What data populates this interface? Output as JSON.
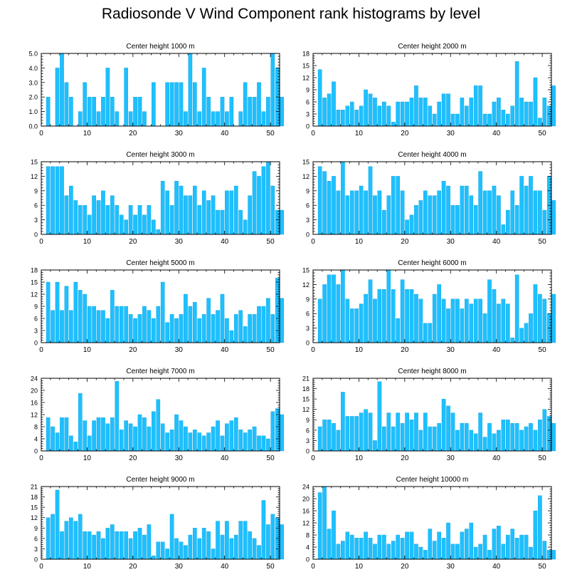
{
  "title": "Radiosonde V Wind Component rank histograms by level",
  "colors": {
    "bar": "#1ec0ff",
    "bar_stroke": "#0aa0dd",
    "frame": "#000000"
  },
  "chart_data": [
    {
      "type": "bar",
      "title": "Center height 1000 m",
      "xlim": [
        0,
        52
      ],
      "ylim": [
        0,
        5
      ],
      "xticks": [
        0,
        10,
        20,
        30,
        40,
        50
      ],
      "yticks": [
        0,
        1,
        2,
        3,
        4,
        5
      ],
      "ytick_labels": [
        "0.0",
        "1.0",
        "2.0",
        "3.0",
        "4.0",
        "5.0"
      ],
      "values": [
        0,
        2,
        0,
        4,
        5,
        3,
        2,
        0,
        1,
        3,
        2,
        2,
        1,
        2,
        4,
        2,
        1,
        0,
        4,
        1,
        2,
        2,
        1,
        0,
        3,
        0,
        0,
        3,
        3,
        3,
        3,
        1,
        5,
        3,
        1,
        4,
        2,
        1,
        1,
        2,
        1,
        2,
        0,
        1,
        3,
        2,
        2,
        3,
        1,
        2,
        5,
        4,
        2
      ]
    },
    {
      "type": "bar",
      "title": "Center height 2000 m",
      "xlim": [
        0,
        52
      ],
      "ylim": [
        0,
        18
      ],
      "xticks": [
        0,
        10,
        20,
        30,
        40,
        50
      ],
      "yticks": [
        0,
        3,
        6,
        9,
        12,
        15,
        18
      ],
      "ytick_labels": [
        "0",
        "3",
        "6",
        "9",
        "12",
        "15",
        "18"
      ],
      "values": [
        0,
        14,
        7,
        8,
        11,
        4,
        4,
        5,
        6,
        4,
        5,
        9,
        8,
        7,
        5,
        6,
        5,
        1,
        6,
        6,
        6,
        7,
        10,
        7,
        7,
        5,
        3,
        6,
        8,
        8,
        3,
        3,
        7,
        5,
        7,
        10,
        10,
        3,
        3,
        6,
        7,
        4,
        3,
        5,
        16,
        7,
        6,
        6,
        12,
        2,
        7,
        5,
        10
      ]
    },
    {
      "type": "bar",
      "title": "Center height 3000 m",
      "xlim": [
        0,
        52
      ],
      "ylim": [
        0,
        15
      ],
      "xticks": [
        0,
        10,
        20,
        30,
        40,
        50
      ],
      "yticks": [
        0,
        3,
        6,
        9,
        12,
        15
      ],
      "ytick_labels": [
        "0",
        "3",
        "6",
        "9",
        "12",
        "15"
      ],
      "values": [
        0,
        14,
        14,
        14,
        14,
        8,
        10,
        7,
        6,
        6,
        4,
        8,
        7,
        9,
        6,
        8,
        6,
        4,
        3,
        6,
        4,
        6,
        4,
        6,
        3,
        1,
        11,
        9,
        6,
        11,
        10,
        8,
        8,
        10,
        6,
        9,
        7,
        8,
        5,
        5,
        9,
        9,
        10,
        5,
        3,
        8,
        13,
        12,
        14,
        15,
        10,
        5,
        5
      ]
    },
    {
      "type": "bar",
      "title": "Center height 4000 m",
      "xlim": [
        0,
        52
      ],
      "ylim": [
        0,
        15
      ],
      "xticks": [
        0,
        10,
        20,
        30,
        40,
        50
      ],
      "yticks": [
        0,
        3,
        6,
        9,
        12,
        15
      ],
      "ytick_labels": [
        "0",
        "3",
        "6",
        "9",
        "12",
        "15"
      ],
      "values": [
        0,
        14,
        13,
        11,
        12,
        9,
        15,
        8,
        9,
        9,
        10,
        9,
        14,
        8,
        9,
        5,
        8,
        12,
        12,
        9,
        3,
        4,
        6,
        7,
        9,
        8,
        8,
        9,
        11,
        10,
        6,
        6,
        10,
        10,
        8,
        6,
        13,
        9,
        9,
        10,
        8,
        2,
        5,
        9,
        6,
        12,
        10,
        12,
        9,
        9,
        5,
        12,
        7
      ]
    },
    {
      "type": "bar",
      "title": "Center height 5000 m",
      "xlim": [
        0,
        52
      ],
      "ylim": [
        0,
        18
      ],
      "xticks": [
        0,
        10,
        20,
        30,
        40,
        50
      ],
      "yticks": [
        0,
        3,
        6,
        9,
        12,
        15,
        18
      ],
      "ytick_labels": [
        "0",
        "3",
        "6",
        "9",
        "12",
        "15",
        "18"
      ],
      "values": [
        0,
        15,
        8,
        15,
        8,
        14,
        8,
        15,
        13,
        12,
        9,
        9,
        8,
        8,
        6,
        13,
        9,
        9,
        9,
        7,
        6,
        7,
        9,
        8,
        6,
        9,
        15,
        5,
        7,
        6,
        7,
        12,
        9,
        10,
        6,
        7,
        11,
        7,
        8,
        12,
        6,
        3,
        7,
        8,
        4,
        7,
        7,
        9,
        9,
        11,
        7,
        16,
        11
      ]
    },
    {
      "type": "bar",
      "title": "Center height 6000 m",
      "xlim": [
        0,
        52
      ],
      "ylim": [
        0,
        15
      ],
      "xticks": [
        0,
        10,
        20,
        30,
        40,
        50
      ],
      "yticks": [
        0,
        3,
        6,
        9,
        12,
        15
      ],
      "ytick_labels": [
        "0",
        "3",
        "6",
        "9",
        "12",
        "15"
      ],
      "values": [
        0,
        9,
        12,
        14,
        14,
        12,
        15,
        9,
        7,
        7,
        8,
        10,
        13,
        9,
        11,
        11,
        15,
        11,
        5,
        13,
        11,
        11,
        10,
        9,
        4,
        4,
        10,
        12,
        9,
        7,
        9,
        9,
        7,
        9,
        8,
        9,
        9,
        6,
        13,
        11,
        8,
        9,
        8,
        1,
        14,
        3,
        4,
        6,
        12,
        10,
        9,
        6,
        10
      ]
    },
    {
      "type": "bar",
      "title": "Center height 7000 m",
      "xlim": [
        0,
        52
      ],
      "ylim": [
        0,
        24
      ],
      "xticks": [
        0,
        10,
        20,
        30,
        40,
        50
      ],
      "yticks": [
        0,
        4,
        8,
        12,
        16,
        20,
        24
      ],
      "ytick_labels": [
        "0",
        "4",
        "8",
        "12",
        "16",
        "20",
        "24"
      ],
      "values": [
        0,
        11,
        8,
        6,
        11,
        11,
        5,
        3,
        19,
        10,
        5,
        10,
        11,
        11,
        9,
        11,
        23,
        7,
        10,
        9,
        8,
        12,
        11,
        8,
        13,
        17,
        9,
        6,
        7,
        12,
        10,
        8,
        6,
        7,
        6,
        5,
        6,
        8,
        10,
        5,
        9,
        10,
        11,
        7,
        6,
        7,
        8,
        5,
        5,
        4,
        13,
        14,
        12
      ]
    },
    {
      "type": "bar",
      "title": "Center height 8000 m",
      "xlim": [
        0,
        52
      ],
      "ylim": [
        0,
        21
      ],
      "xticks": [
        0,
        10,
        20,
        30,
        40,
        50
      ],
      "yticks": [
        0,
        3,
        6,
        9,
        12,
        15,
        18,
        21
      ],
      "ytick_labels": [
        "0",
        "3",
        "6",
        "9",
        "12",
        "15",
        "18",
        "21"
      ],
      "values": [
        0,
        7,
        9,
        9,
        8,
        6,
        17,
        10,
        10,
        10,
        11,
        12,
        11,
        3,
        20,
        7,
        11,
        7,
        11,
        8,
        11,
        9,
        11,
        6,
        11,
        7,
        7,
        8,
        15,
        13,
        11,
        6,
        8,
        8,
        6,
        5,
        11,
        4,
        8,
        5,
        6,
        9,
        9,
        8,
        8,
        6,
        7,
        8,
        6,
        9,
        12,
        10,
        8
      ]
    },
    {
      "type": "bar",
      "title": "Center height 9000 m",
      "xlim": [
        0,
        52
      ],
      "ylim": [
        0,
        21
      ],
      "xticks": [
        0,
        10,
        20,
        30,
        40,
        50
      ],
      "yticks": [
        0,
        3,
        6,
        9,
        12,
        15,
        18,
        21
      ],
      "ytick_labels": [
        "0",
        "3",
        "6",
        "9",
        "12",
        "15",
        "18",
        "21"
      ],
      "values": [
        0,
        12,
        13,
        20,
        8,
        11,
        12,
        11,
        13,
        8,
        8,
        7,
        8,
        6,
        9,
        10,
        8,
        8,
        8,
        6,
        8,
        9,
        7,
        10,
        1,
        5,
        5,
        3,
        13,
        6,
        5,
        4,
        7,
        9,
        6,
        9,
        8,
        3,
        11,
        7,
        11,
        6,
        7,
        11,
        11,
        8,
        6,
        4,
        17,
        10,
        13,
        12,
        10
      ]
    },
    {
      "type": "bar",
      "title": "Center height 10000 m",
      "xlim": [
        0,
        52
      ],
      "ylim": [
        0,
        24
      ],
      "xticks": [
        0,
        10,
        20,
        30,
        40,
        50
      ],
      "yticks": [
        0,
        4,
        8,
        12,
        16,
        20,
        24
      ],
      "ytick_labels": [
        "0",
        "4",
        "8",
        "12",
        "16",
        "20",
        "24"
      ],
      "values": [
        0,
        22,
        24,
        10,
        16,
        5,
        6,
        9,
        8,
        7,
        7,
        9,
        7,
        5,
        8,
        8,
        5,
        6,
        8,
        7,
        9,
        9,
        5,
        4,
        3,
        10,
        6,
        9,
        7,
        12,
        5,
        5,
        9,
        10,
        12,
        4,
        5,
        8,
        3,
        10,
        11,
        5,
        8,
        10,
        7,
        8,
        8,
        4,
        16,
        21,
        6,
        3,
        3
      ]
    }
  ]
}
